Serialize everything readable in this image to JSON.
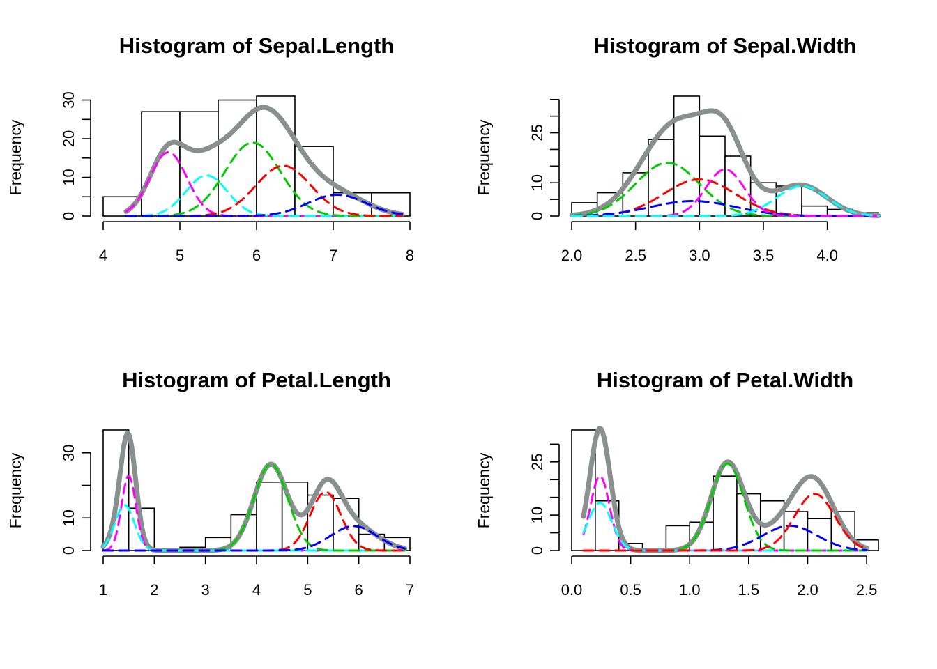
{
  "chart_data": [
    {
      "type": "histogram",
      "title": "Histogram of Sepal.Length",
      "ylabel": "Frequency",
      "xlim": [
        4,
        8
      ],
      "ylim": [
        0,
        31
      ],
      "xticks": [
        4,
        5,
        6,
        7,
        8
      ],
      "xtick_labels": [
        "4",
        "5",
        "6",
        "7",
        "8"
      ],
      "yticks": [
        0,
        5,
        10,
        15,
        20,
        25,
        30
      ],
      "ytick_labels": [
        "0",
        "",
        "10",
        "",
        "20",
        "",
        "30"
      ],
      "bins": [
        {
          "x0": 4.0,
          "x1": 4.5,
          "count": 5
        },
        {
          "x0": 4.5,
          "x1": 5.0,
          "count": 27
        },
        {
          "x0": 5.0,
          "x1": 5.5,
          "count": 27
        },
        {
          "x0": 5.5,
          "x1": 6.0,
          "count": 30
        },
        {
          "x0": 6.0,
          "x1": 6.5,
          "count": 31
        },
        {
          "x0": 6.5,
          "x1": 7.0,
          "count": 18
        },
        {
          "x0": 7.0,
          "x1": 7.5,
          "count": 6
        },
        {
          "x0": 7.5,
          "x1": 8.0,
          "count": 6
        }
      ],
      "curve_range": [
        4.3,
        7.9
      ],
      "components": [
        {
          "color": "#ff00ff",
          "mu": 4.85,
          "sigma": 0.24,
          "peak": 16.5
        },
        {
          "color": "#00ffff",
          "mu": 5.35,
          "sigma": 0.27,
          "peak": 10.5
        },
        {
          "color": "#00cd00",
          "mu": 5.95,
          "sigma": 0.36,
          "peak": 19.0
        },
        {
          "color": "#ff0000",
          "mu": 6.35,
          "sigma": 0.36,
          "peak": 13.0
        },
        {
          "color": "#0000ff",
          "mu": 7.05,
          "sigma": 0.38,
          "peak": 5.5
        }
      ],
      "total_color": "#8a9090"
    },
    {
      "type": "histogram",
      "title": "Histogram of Sepal.Width",
      "ylabel": "Frequency",
      "xlim": [
        2.0,
        4.4
      ],
      "ylim": [
        0,
        36
      ],
      "xticks": [
        2.0,
        2.5,
        3.0,
        3.5,
        4.0
      ],
      "xtick_labels": [
        "2.0",
        "2.5",
        "3.0",
        "3.5",
        "4.0"
      ],
      "yticks": [
        0,
        5,
        10,
        15,
        20,
        25,
        30,
        35
      ],
      "ytick_labels": [
        "0",
        "",
        "10",
        "",
        "",
        "25",
        "",
        ""
      ],
      "bins": [
        {
          "x0": 2.0,
          "x1": 2.2,
          "count": 4
        },
        {
          "x0": 2.2,
          "x1": 2.4,
          "count": 7
        },
        {
          "x0": 2.4,
          "x1": 2.6,
          "count": 13
        },
        {
          "x0": 2.6,
          "x1": 2.8,
          "count": 23
        },
        {
          "x0": 2.8,
          "x1": 3.0,
          "count": 36
        },
        {
          "x0": 3.0,
          "x1": 3.2,
          "count": 24
        },
        {
          "x0": 3.2,
          "x1": 3.4,
          "count": 18
        },
        {
          "x0": 3.4,
          "x1": 3.6,
          "count": 10
        },
        {
          "x0": 3.6,
          "x1": 3.8,
          "count": 9
        },
        {
          "x0": 3.8,
          "x1": 4.0,
          "count": 3
        },
        {
          "x0": 4.0,
          "x1": 4.2,
          "count": 2
        },
        {
          "x0": 4.2,
          "x1": 4.4,
          "count": 1
        }
      ],
      "curve_range": [
        2.0,
        4.4
      ],
      "components": [
        {
          "color": "#00cd00",
          "mu": 2.75,
          "sigma": 0.25,
          "peak": 16.0
        },
        {
          "color": "#ff0000",
          "mu": 3.0,
          "sigma": 0.28,
          "peak": 11.0
        },
        {
          "color": "#0000ff",
          "mu": 2.95,
          "sigma": 0.33,
          "peak": 4.5
        },
        {
          "color": "#ff00ff",
          "mu": 3.2,
          "sigma": 0.15,
          "peak": 14.0
        },
        {
          "color": "#00ffff",
          "mu": 3.8,
          "sigma": 0.2,
          "peak": 9.0
        }
      ],
      "total_color": "#8a9090"
    },
    {
      "type": "histogram",
      "title": "Histogram of Petal.Length",
      "ylabel": "Frequency",
      "xlim": [
        1,
        7
      ],
      "ylim": [
        0,
        37
      ],
      "xticks": [
        1,
        2,
        3,
        4,
        5,
        6,
        7
      ],
      "xtick_labels": [
        "1",
        "2",
        "3",
        "4",
        "5",
        "6",
        "7"
      ],
      "yticks": [
        0,
        10,
        20,
        30
      ],
      "ytick_labels": [
        "0",
        "10",
        "",
        "30"
      ],
      "bins": [
        {
          "x0": 1.0,
          "x1": 1.5,
          "count": 37
        },
        {
          "x0": 1.5,
          "x1": 2.0,
          "count": 13
        },
        {
          "x0": 2.0,
          "x1": 2.5,
          "count": 0
        },
        {
          "x0": 2.5,
          "x1": 3.0,
          "count": 1
        },
        {
          "x0": 3.0,
          "x1": 3.5,
          "count": 4
        },
        {
          "x0": 3.5,
          "x1": 4.0,
          "count": 11
        },
        {
          "x0": 4.0,
          "x1": 4.5,
          "count": 21
        },
        {
          "x0": 4.5,
          "x1": 5.0,
          "count": 21
        },
        {
          "x0": 5.0,
          "x1": 5.5,
          "count": 17
        },
        {
          "x0": 5.5,
          "x1": 6.0,
          "count": 16
        },
        {
          "x0": 6.0,
          "x1": 6.5,
          "count": 5
        },
        {
          "x0": 6.5,
          "x1": 7.0,
          "count": 4
        }
      ],
      "curve_range": [
        1.0,
        6.9
      ],
      "components": [
        {
          "color": "#ff00ff",
          "mu": 1.5,
          "sigma": 0.14,
          "peak": 23.0
        },
        {
          "color": "#00ffff",
          "mu": 1.42,
          "sigma": 0.19,
          "peak": 14.0
        },
        {
          "color": "#00cd00",
          "mu": 4.28,
          "sigma": 0.33,
          "peak": 26.5
        },
        {
          "color": "#ff0000",
          "mu": 5.35,
          "sigma": 0.3,
          "peak": 18.0
        },
        {
          "color": "#0000ff",
          "mu": 5.9,
          "sigma": 0.45,
          "peak": 7.5
        }
      ],
      "total_color": "#8a9090"
    },
    {
      "type": "histogram",
      "title": "Histogram of Petal.Width",
      "ylabel": "Frequency",
      "xlim": [
        0.0,
        2.6
      ],
      "ylim": [
        0,
        34
      ],
      "xticks": [
        0.0,
        0.5,
        1.0,
        1.5,
        2.0,
        2.5
      ],
      "xtick_labels": [
        "0.0",
        "0.5",
        "1.0",
        "1.5",
        "2.0",
        "2.5"
      ],
      "yticks": [
        0,
        5,
        10,
        15,
        20,
        25,
        30
      ],
      "ytick_labels": [
        "0",
        "",
        "10",
        "",
        "",
        "25",
        ""
      ],
      "bins": [
        {
          "x0": 0.0,
          "x1": 0.2,
          "count": 34
        },
        {
          "x0": 0.2,
          "x1": 0.4,
          "count": 14
        },
        {
          "x0": 0.4,
          "x1": 0.6,
          "count": 2
        },
        {
          "x0": 0.6,
          "x1": 0.8,
          "count": 0
        },
        {
          "x0": 0.8,
          "x1": 1.0,
          "count": 7
        },
        {
          "x0": 1.0,
          "x1": 1.2,
          "count": 8
        },
        {
          "x0": 1.2,
          "x1": 1.4,
          "count": 21
        },
        {
          "x0": 1.4,
          "x1": 1.6,
          "count": 16
        },
        {
          "x0": 1.6,
          "x1": 1.8,
          "count": 14
        },
        {
          "x0": 1.8,
          "x1": 2.0,
          "count": 11
        },
        {
          "x0": 2.0,
          "x1": 2.2,
          "count": 9
        },
        {
          "x0": 2.2,
          "x1": 2.4,
          "count": 11
        },
        {
          "x0": 2.4,
          "x1": 2.6,
          "count": 3
        }
      ],
      "curve_range": [
        0.1,
        2.5
      ],
      "components": [
        {
          "color": "#ff00ff",
          "mu": 0.24,
          "sigma": 0.08,
          "peak": 21.0
        },
        {
          "color": "#00ffff",
          "mu": 0.24,
          "sigma": 0.1,
          "peak": 13.5
        },
        {
          "color": "#00cd00",
          "mu": 1.32,
          "sigma": 0.14,
          "peak": 24.5
        },
        {
          "color": "#0000ff",
          "mu": 1.85,
          "sigma": 0.23,
          "peak": 7.0
        },
        {
          "color": "#ff0000",
          "mu": 2.06,
          "sigma": 0.17,
          "peak": 16.0
        }
      ],
      "total_color": "#8a9090"
    }
  ]
}
